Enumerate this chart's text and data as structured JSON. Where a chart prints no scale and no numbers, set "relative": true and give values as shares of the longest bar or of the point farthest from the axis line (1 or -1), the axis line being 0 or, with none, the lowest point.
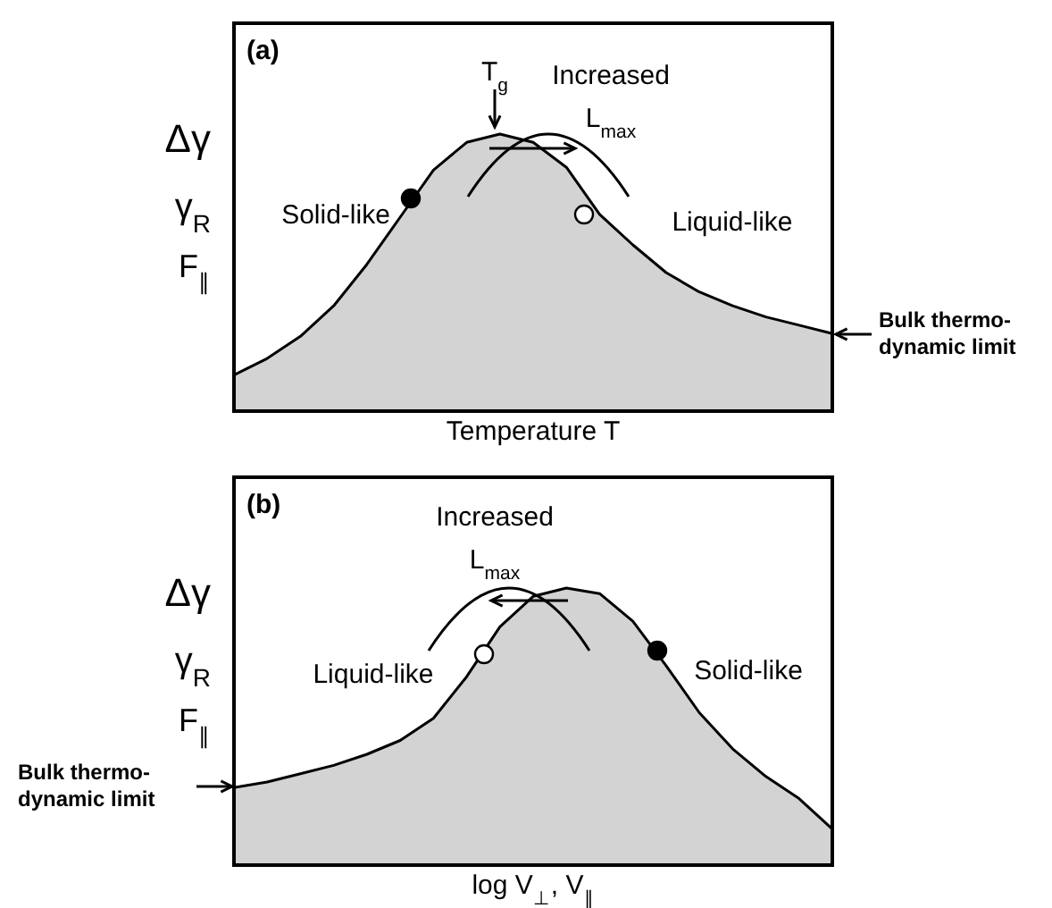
{
  "chart_data": [
    {
      "type": "area",
      "title": "(a)",
      "xlabel": "Temperature T",
      "ylabel": "Δγ\nγ$_{R}$\nF$_{∥}$",
      "relative": true,
      "categories": [
        null,
        null,
        null,
        null,
        null,
        null,
        null,
        null,
        null,
        null,
        null,
        null,
        null,
        null,
        null,
        null,
        null,
        null,
        null
      ],
      "annotations": [
        "T$_{g}$",
        "Increased\nL$_{max}$",
        "Solid-like",
        "Liquid-like",
        "Bulk thermo-\ndynamic limit"
      ],
      "series": [
        {
          "color": "#d3d3d3",
          "values": [
            0.13,
            0.19,
            0.27,
            0.38,
            0.53,
            0.7,
            0.87,
            0.97,
            1.0,
            0.97,
            0.88,
            0.71,
            0.6,
            0.5,
            0.43,
            0.38,
            0.34,
            0.31,
            0.28
          ]
        }
      ]
    },
    {
      "type": "area",
      "title": "(b)",
      "xlabel": "log V$_{⊥}$, V$_{∥}$",
      "ylabel": "Δγ\nγ$_{R}$\nF$_{∥}$",
      "relative": true,
      "categories": [
        null,
        null,
        null,
        null,
        null,
        null,
        null,
        null,
        null,
        null,
        null,
        null,
        null,
        null,
        null,
        null,
        null,
        null,
        null
      ],
      "annotations": [
        "Increased\nL$_{max}$",
        "Liquid-like",
        "Solid-like",
        "Bulk thermo-\ndynamic limit"
      ],
      "series": [
        {
          "color": "#d3d3d3",
          "values": [
            0.28,
            0.3,
            0.33,
            0.36,
            0.4,
            0.45,
            0.53,
            0.68,
            0.86,
            0.97,
            1.0,
            0.98,
            0.88,
            0.72,
            0.55,
            0.42,
            0.32,
            0.24,
            0.13
          ]
        }
      ]
    }
  ]
}
